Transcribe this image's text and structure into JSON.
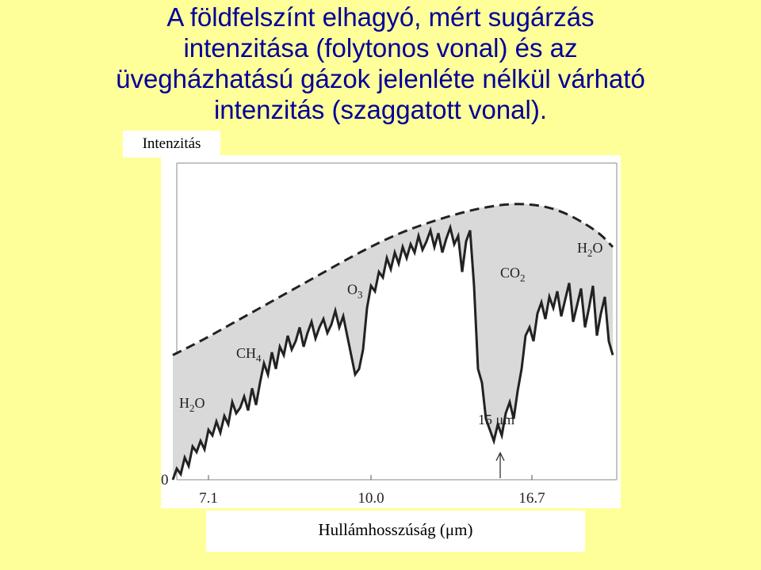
{
  "title_lines": [
    "A földfelszínt elhagyó, mért sugárzás",
    "intenzitása (folytonos vonal) és az",
    "üvegházhatású gázok jelenléte nélkül várható",
    "intenzitás (szaggatott vonal)."
  ],
  "chart_data": {
    "type": "line",
    "ylabel": "Intenzitás",
    "xlabel": "Hullámhosszúság (μm)",
    "y_tick_labels": [
      "0"
    ],
    "x_tick_labels": [
      "7.1",
      "10.0",
      "16.7"
    ],
    "annotations": [
      {
        "label": "H",
        "sub": "2",
        "tail": "O",
        "x": 23,
        "y": 26
      },
      {
        "label": "CH",
        "sub": "4",
        "x": 95,
        "y": 44
      },
      {
        "label": "O",
        "sub": "3",
        "x": 235,
        "y": 67
      },
      {
        "label": "CO",
        "sub": "2",
        "x": 428,
        "y": 73
      },
      {
        "label": "H",
        "sub": "2",
        "tail": "O",
        "x": 525,
        "y": 82
      },
      {
        "label": "15 μm",
        "x": 400,
        "y": 20
      }
    ],
    "series": [
      {
        "style": "solid",
        "x": [
          15,
          20,
          25,
          30,
          35,
          40,
          45,
          50,
          55,
          60,
          65,
          70,
          75,
          80,
          85,
          90,
          95,
          100,
          105,
          110,
          115,
          120,
          125,
          130,
          135,
          140,
          145,
          150,
          155,
          160,
          165,
          170,
          175,
          180,
          185,
          190,
          195,
          200,
          205,
          210,
          215,
          220,
          225,
          230,
          235,
          240,
          245,
          250,
          255,
          260,
          265,
          270,
          275,
          280,
          285,
          290,
          295,
          300,
          305,
          310,
          315,
          320,
          325,
          330,
          335,
          340,
          345,
          350,
          355,
          360,
          365,
          370,
          375,
          380,
          385,
          390,
          395,
          400,
          405,
          410,
          415,
          420,
          425,
          430,
          435,
          440,
          445,
          450,
          455,
          460,
          465,
          470,
          475,
          480,
          485,
          490,
          495,
          500,
          505,
          510,
          515,
          520,
          525,
          530,
          535,
          540,
          545,
          550,
          555,
          560,
          565,
          570
        ],
        "y": [
          0,
          4,
          2,
          8,
          5,
          12,
          10,
          14,
          11,
          18,
          16,
          21,
          17,
          23,
          20,
          28,
          24,
          26,
          30,
          25,
          33,
          27,
          35,
          42,
          38,
          46,
          40,
          48,
          45,
          52,
          47,
          50,
          55,
          48,
          53,
          57,
          51,
          55,
          58,
          53,
          56,
          61,
          55,
          59,
          52,
          45,
          38,
          40,
          47,
          62,
          70,
          68,
          75,
          73,
          80,
          76,
          82,
          78,
          84,
          80,
          85,
          82,
          88,
          83,
          86,
          90,
          84,
          89,
          82,
          87,
          91,
          85,
          88,
          75,
          86,
          90,
          70,
          40,
          35,
          22,
          18,
          14,
          20,
          16,
          24,
          28,
          22,
          32,
          40,
          52,
          55,
          50,
          60,
          64,
          58,
          66,
          62,
          68,
          59,
          65,
          71,
          57,
          63,
          69,
          55,
          62,
          70,
          52,
          60,
          66,
          50,
          45
        ],
        "unit": "relative intensity"
      },
      {
        "style": "dashed",
        "x": [
          15,
          50,
          100,
          150,
          200,
          250,
          300,
          350,
          400,
          450,
          500,
          550,
          570
        ],
        "y": [
          45,
          50,
          58,
          66,
          74,
          82,
          89,
          94,
          98,
          100,
          98,
          90,
          84
        ],
        "unit": "relative intensity"
      }
    ]
  }
}
